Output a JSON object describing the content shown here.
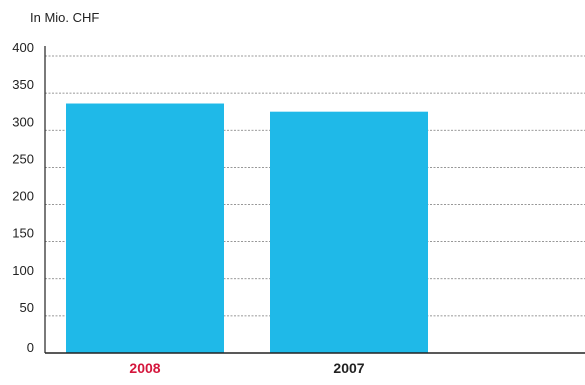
{
  "chart_data": {
    "type": "bar",
    "unit_label": "In Mio. CHF",
    "categories": [
      "2008",
      "2007"
    ],
    "values": [
      336,
      325
    ],
    "ylim": [
      0,
      400
    ],
    "yticks": [
      0,
      50,
      100,
      150,
      200,
      250,
      300,
      350,
      400
    ],
    "grid": true,
    "grid_style": "dashed",
    "colors": {
      "bar": "#1fb9e8",
      "highlight_label": "#d4163c",
      "label": "#222222",
      "axis": "#222222",
      "grid": "#777777"
    },
    "highlight_category": "2008"
  }
}
